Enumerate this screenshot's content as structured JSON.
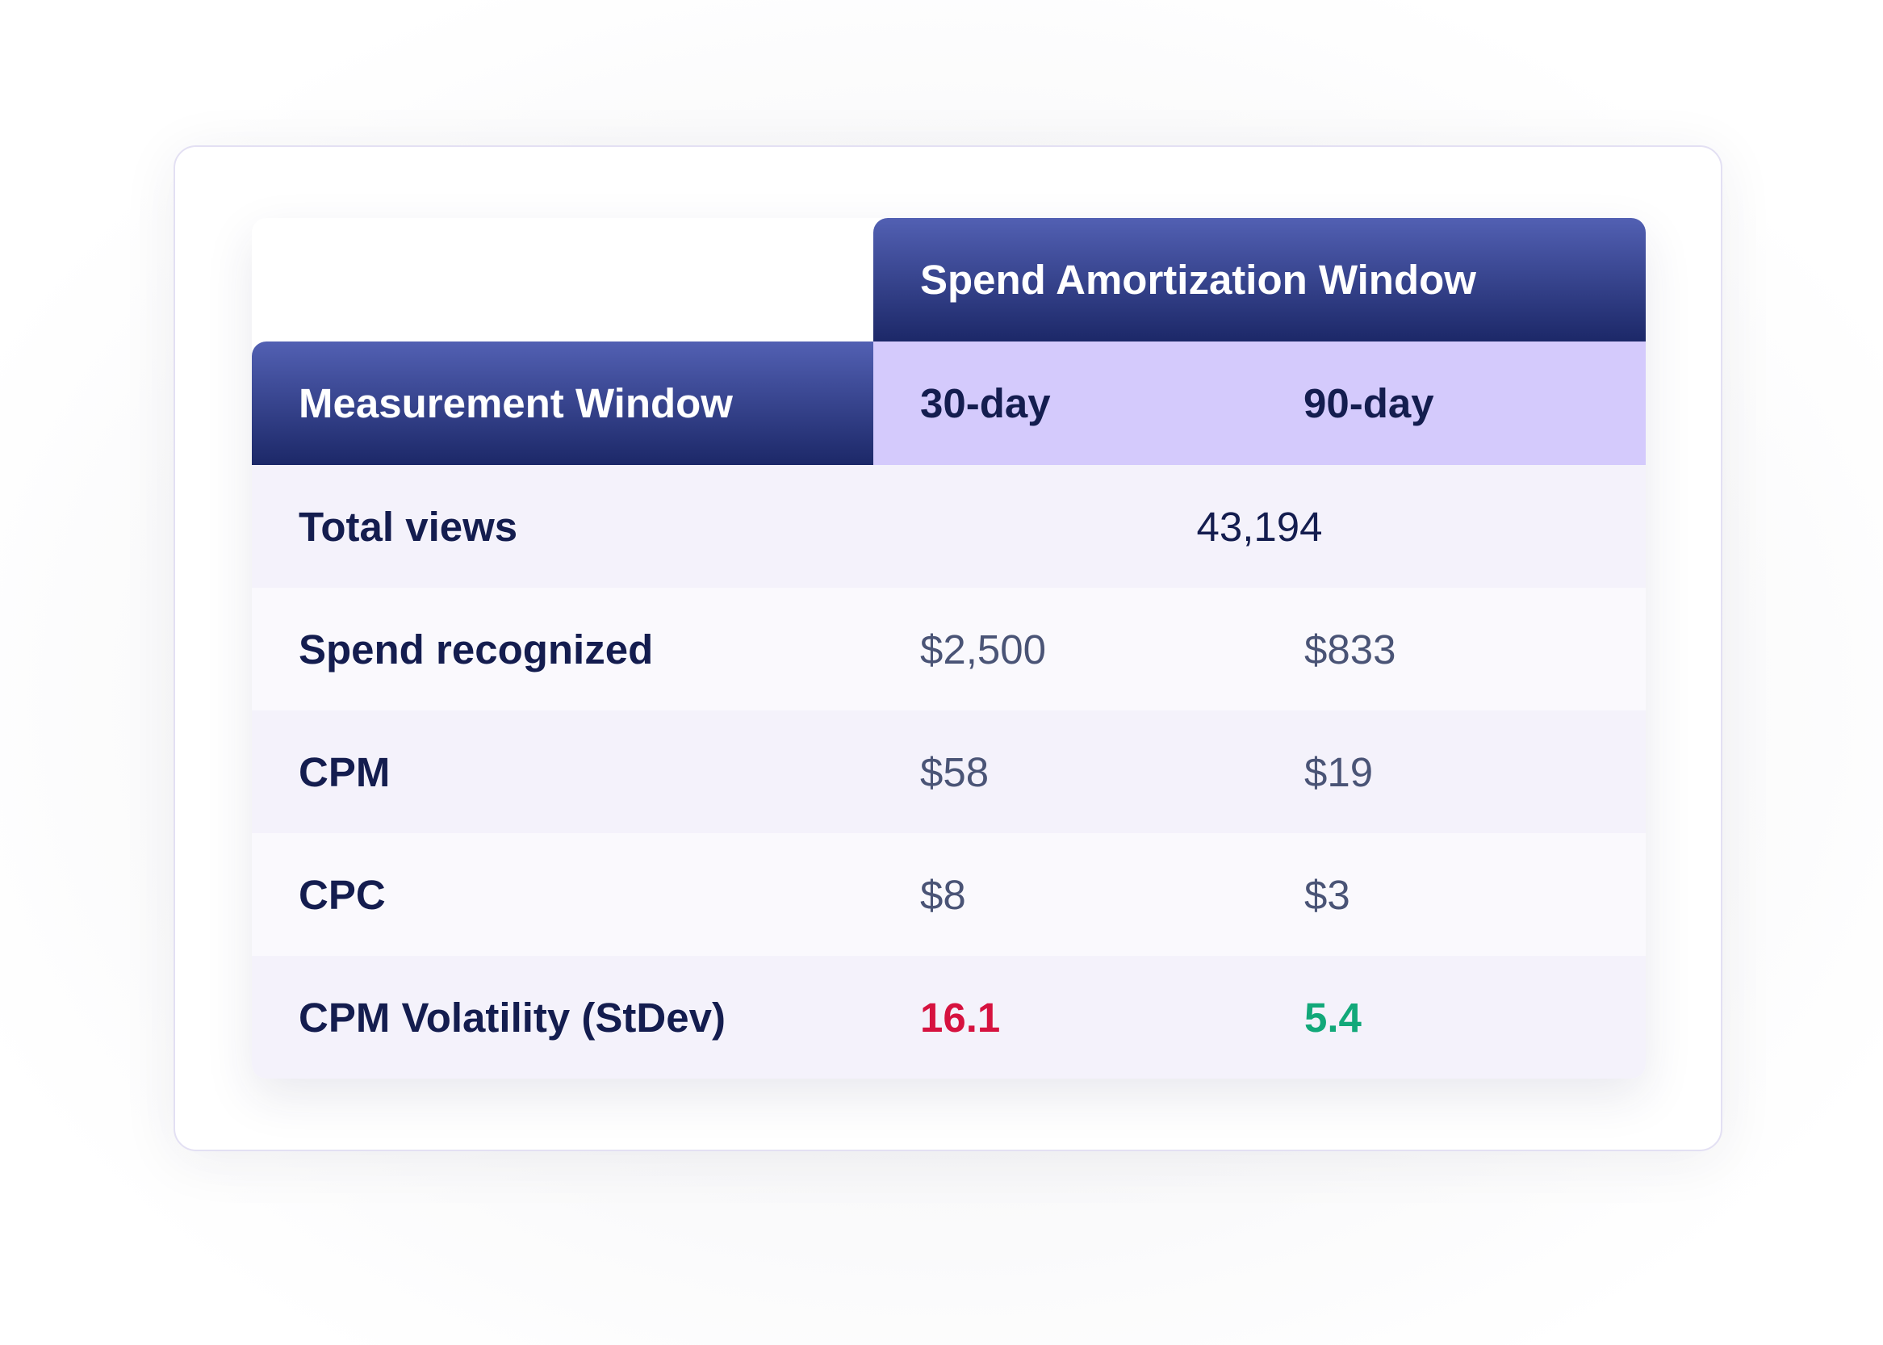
{
  "table": {
    "group_header": "Spend Amortization Window",
    "row_header_title": "Measurement Window",
    "columns": [
      "30-day",
      "90-day"
    ],
    "rows": [
      {
        "label": "Total views",
        "merged_value": "43,194"
      },
      {
        "label": "Spend recognized",
        "values": [
          "$2,500",
          "$833"
        ]
      },
      {
        "label": "CPM",
        "values": [
          "$58",
          "$19"
        ]
      },
      {
        "label": "CPC",
        "values": [
          "$8",
          "$3"
        ]
      },
      {
        "label": "CPM Volatility (StDev)",
        "values": [
          "16.1",
          "5.4"
        ]
      }
    ]
  },
  "colors": {
    "header_gradient_top": "#5260b3",
    "header_gradient_bottom": "#1c2868",
    "subheader_bg": "#d4cafc",
    "text_dark": "#141d4f",
    "text_muted": "#4a5476",
    "volatility_high": "#d6123f",
    "volatility_low": "#12a879"
  }
}
